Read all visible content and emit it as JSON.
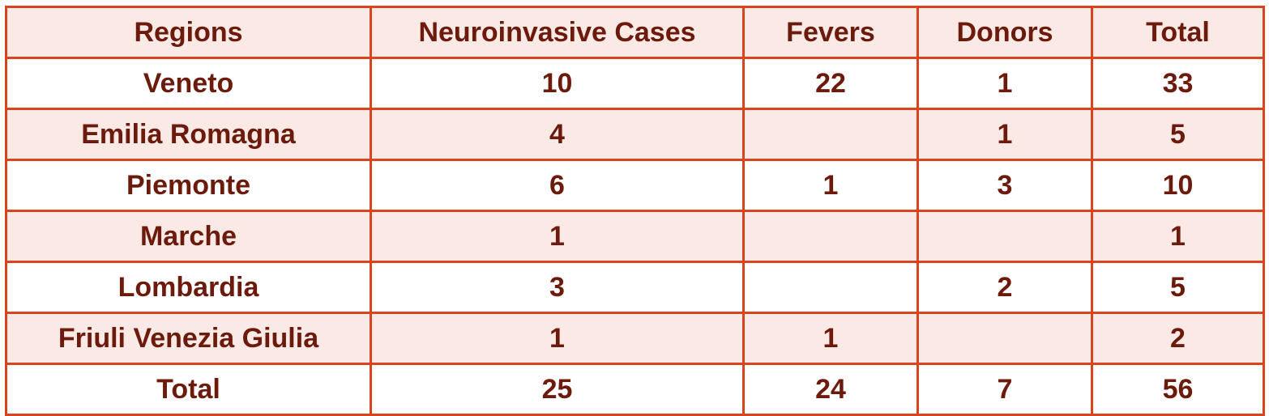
{
  "table": {
    "headers": [
      "Regions",
      "Neuroinvasive Cases",
      "Fevers",
      "Donors",
      "Total"
    ],
    "rows": [
      [
        "Veneto",
        "10",
        "22",
        "1",
        "33"
      ],
      [
        "Emilia Romagna",
        "4",
        "",
        "1",
        "5"
      ],
      [
        "Piemonte",
        "6",
        "1",
        "3",
        "10"
      ],
      [
        "Marche",
        "1",
        "",
        "",
        "1"
      ],
      [
        "Lombardia",
        "3",
        "",
        "2",
        "5"
      ],
      [
        "Friuli Venezia Giulia",
        "1",
        "1",
        "",
        "2"
      ]
    ],
    "total_row": [
      "Total",
      "25",
      "24",
      "7",
      "56"
    ]
  },
  "colors": {
    "border": "#d9441e",
    "text": "#6b1a0c",
    "band": "#fbe9e5"
  }
}
